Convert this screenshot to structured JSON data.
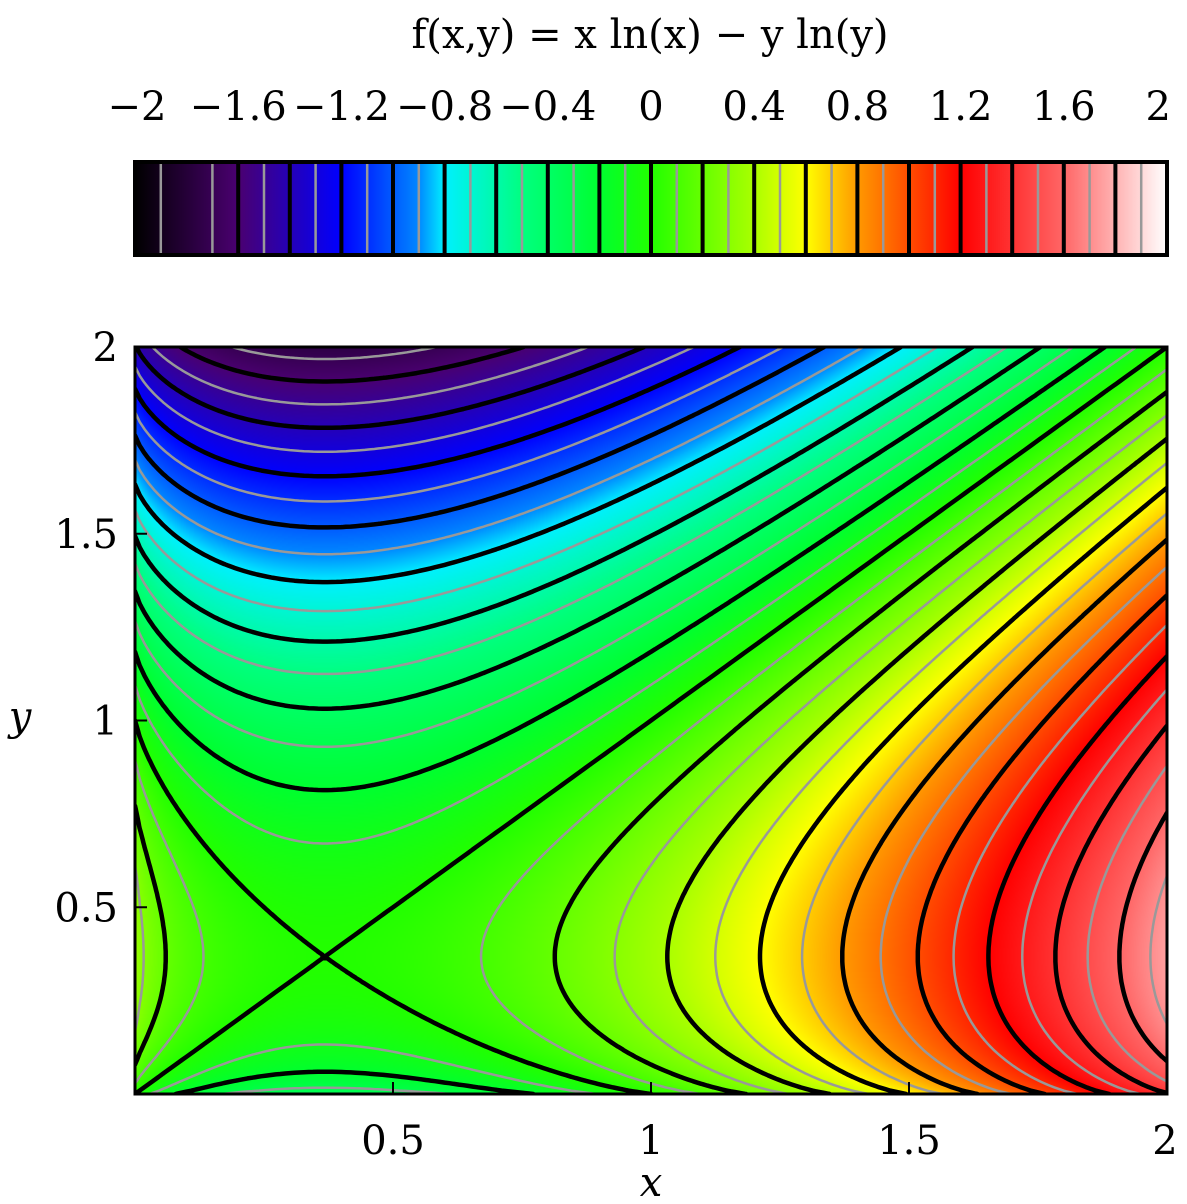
{
  "chart_data": {
    "type": "heatmap",
    "title": "f(x,y) = x ln(x) − y ln(y)",
    "function": "x*ln(x) - y*ln(y)",
    "xlabel": "x",
    "ylabel": "y",
    "xlim": [
      0,
      2
    ],
    "ylim": [
      0,
      2
    ],
    "x_ticks": [
      0.5,
      1,
      1.5,
      2
    ],
    "x_tick_labels": [
      "0.5",
      "1",
      "1.5",
      "2"
    ],
    "y_ticks": [
      0.5,
      1,
      1.5,
      2
    ],
    "y_tick_labels": [
      "0.5",
      "1",
      "1.5",
      "2"
    ],
    "colorbar": {
      "position": "top",
      "range": [
        -2,
        2
      ],
      "ticks": [
        -2,
        -1.6,
        -1.2,
        -0.8,
        -0.4,
        0,
        0.4,
        0.8,
        1.2,
        1.6,
        2
      ],
      "tick_labels": [
        "−2",
        "−1.6",
        "−1.2",
        "−0.8",
        "−0.4",
        "0",
        "0.4",
        "0.8",
        "1.2",
        "1.6",
        "2"
      ],
      "colormap_stops": [
        {
          "value": -2.0,
          "color": "#000000"
        },
        {
          "value": -1.6,
          "color": "#4a0070"
        },
        {
          "value": -1.2,
          "color": "#0000ff"
        },
        {
          "value": -0.9,
          "color": "#0088ff"
        },
        {
          "value": -0.8,
          "color": "#00f0ff"
        },
        {
          "value": -0.5,
          "color": "#00ff80"
        },
        {
          "value": -0.2,
          "color": "#00ff30"
        },
        {
          "value": 0.0,
          "color": "#22ff00"
        },
        {
          "value": 0.4,
          "color": "#aaff00"
        },
        {
          "value": 0.6,
          "color": "#ffff00"
        },
        {
          "value": 0.8,
          "color": "#ff9900"
        },
        {
          "value": 1.2,
          "color": "#ff0000"
        },
        {
          "value": 1.6,
          "color": "#ff6666"
        },
        {
          "value": 2.0,
          "color": "#ffffff"
        }
      ]
    },
    "contours": {
      "major_levels": [
        -1.6,
        -1.4,
        -1.2,
        -1.0,
        -0.8,
        -0.6,
        -0.4,
        -0.2,
        0,
        0.2,
        0.4,
        0.6,
        0.8,
        1.0,
        1.2,
        1.4,
        1.6,
        1.8
      ],
      "minor_levels": [
        -1.9,
        -1.7,
        -1.5,
        -1.3,
        -1.1,
        -0.9,
        -0.7,
        -0.5,
        -0.3,
        -0.1,
        0.1,
        0.3,
        0.5,
        0.7,
        0.9,
        1.1,
        1.3,
        1.5,
        1.7,
        1.9
      ],
      "major_color": "#000000",
      "minor_color": "#999999"
    },
    "grid": false
  }
}
